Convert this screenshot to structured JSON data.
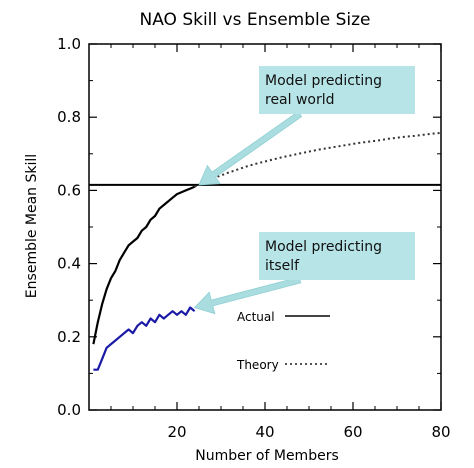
{
  "chart_data": {
    "type": "line",
    "title": "NAO Skill vs Ensemble Size",
    "xlabel": "Number of Members",
    "ylabel": "Ensemble Mean Skill",
    "xlim": [
      0,
      80
    ],
    "ylim": [
      0.0,
      1.0
    ],
    "x_ticks": [
      "20",
      "40",
      "60",
      "80"
    ],
    "y_ticks": [
      "0.0",
      "0.2",
      "0.4",
      "0.6",
      "0.8",
      "1.0"
    ],
    "grid": false,
    "legend": {
      "placement": "bottom-right",
      "entries": [
        {
          "label": "Actual",
          "style": "solid"
        },
        {
          "label": "Theory",
          "style": "dotted"
        }
      ]
    },
    "horizontal_line": {
      "y": 0.615,
      "color": "#000000"
    },
    "series": [
      {
        "color": "#000000",
        "style": "solid",
        "x": [
          1,
          2,
          3,
          4,
          5,
          6,
          7,
          8,
          9,
          10,
          11,
          12,
          13,
          14,
          15,
          16,
          17,
          18,
          19,
          20,
          21,
          22,
          23,
          24
        ],
        "y": [
          0.18,
          0.24,
          0.29,
          0.33,
          0.36,
          0.38,
          0.41,
          0.43,
          0.45,
          0.46,
          0.47,
          0.49,
          0.5,
          0.52,
          0.53,
          0.55,
          0.56,
          0.57,
          0.58,
          0.59,
          0.595,
          0.6,
          0.605,
          0.61
        ]
      },
      {
        "color": "#1a1aa6",
        "style": "solid",
        "x": [
          1,
          2,
          3,
          4,
          5,
          6,
          7,
          8,
          9,
          10,
          11,
          12,
          13,
          14,
          15,
          16,
          17,
          18,
          19,
          20,
          21,
          22,
          23,
          24
        ],
        "y": [
          0.11,
          0.11,
          0.14,
          0.17,
          0.18,
          0.19,
          0.2,
          0.21,
          0.22,
          0.21,
          0.23,
          0.24,
          0.23,
          0.25,
          0.24,
          0.26,
          0.25,
          0.26,
          0.27,
          0.26,
          0.27,
          0.26,
          0.28,
          0.27
        ]
      },
      {
        "color": "#333333",
        "style": "dotted",
        "x": [
          24,
          26,
          28,
          30,
          32,
          34,
          36,
          38,
          40,
          42,
          44,
          46,
          48,
          50,
          52,
          54,
          56,
          58,
          60,
          62,
          64,
          66,
          68,
          70,
          72,
          74,
          76,
          78,
          80
        ],
        "y": [
          0.61,
          0.621,
          0.632,
          0.641,
          0.65,
          0.658,
          0.666,
          0.673,
          0.679,
          0.685,
          0.691,
          0.696,
          0.701,
          0.706,
          0.711,
          0.715,
          0.719,
          0.723,
          0.727,
          0.731,
          0.734,
          0.737,
          0.741,
          0.744,
          0.747,
          0.749,
          0.752,
          0.755,
          0.757
        ]
      }
    ],
    "annotations": [
      {
        "lines": [
          "Model predicting",
          "real world"
        ],
        "point_x": 25,
        "point_y": 0.615
      },
      {
        "lines": [
          "Model predicting",
          "itself"
        ],
        "point_x": 24,
        "point_y": 0.28
      }
    ],
    "callout_color": "#b7e4e6",
    "arrow_color": "#a9dde0"
  }
}
